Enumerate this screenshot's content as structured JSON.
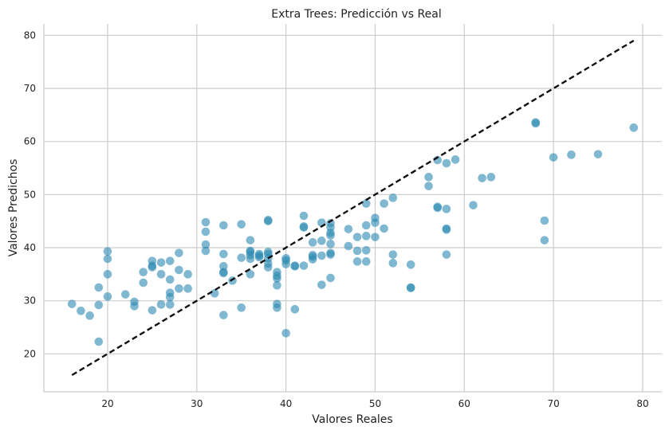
{
  "chart_data": {
    "type": "scatter",
    "title": "Extra Trees: Predicción vs Real",
    "xlabel": "Valores Reales",
    "ylabel": "Valores Predichos",
    "xlim": [
      12.85,
      82.15
    ],
    "ylim": [
      12.85,
      82.15
    ],
    "xticks": [
      20,
      30,
      40,
      50,
      60,
      70,
      80
    ],
    "yticks": [
      20,
      30,
      40,
      50,
      60,
      70,
      80
    ],
    "xtick_labels": [
      "20",
      "30",
      "40",
      "50",
      "60",
      "70",
      "80"
    ],
    "ytick_labels": [
      "20",
      "30",
      "40",
      "50",
      "60",
      "70",
      "80"
    ],
    "grid": true,
    "point_color": "#2a88b0",
    "reference_line": {
      "style": "dashed",
      "color": "#111111",
      "x": [
        16,
        79
      ],
      "y": [
        16,
        79
      ]
    },
    "points": [
      {
        "x": 16,
        "y": 29.4
      },
      {
        "x": 17,
        "y": 28.1
      },
      {
        "x": 18,
        "y": 27.2
      },
      {
        "x": 19,
        "y": 22.3
      },
      {
        "x": 19,
        "y": 29.2
      },
      {
        "x": 19,
        "y": 32.5
      },
      {
        "x": 20,
        "y": 30.8
      },
      {
        "x": 20,
        "y": 35.0
      },
      {
        "x": 20,
        "y": 37.9
      },
      {
        "x": 20,
        "y": 39.3
      },
      {
        "x": 22,
        "y": 31.2
      },
      {
        "x": 23,
        "y": 29.0
      },
      {
        "x": 23,
        "y": 29.8
      },
      {
        "x": 24,
        "y": 33.4
      },
      {
        "x": 24,
        "y": 35.4
      },
      {
        "x": 25,
        "y": 28.2
      },
      {
        "x": 25,
        "y": 36.3
      },
      {
        "x": 25,
        "y": 36.6
      },
      {
        "x": 25,
        "y": 37.5
      },
      {
        "x": 26,
        "y": 29.3
      },
      {
        "x": 26,
        "y": 35.0
      },
      {
        "x": 26,
        "y": 37.2
      },
      {
        "x": 27,
        "y": 29.3
      },
      {
        "x": 27,
        "y": 30.7
      },
      {
        "x": 27,
        "y": 31.5
      },
      {
        "x": 27,
        "y": 34.0
      },
      {
        "x": 27,
        "y": 37.5
      },
      {
        "x": 28,
        "y": 32.3
      },
      {
        "x": 28,
        "y": 35.8
      },
      {
        "x": 28,
        "y": 39.0
      },
      {
        "x": 29,
        "y": 32.3
      },
      {
        "x": 29,
        "y": 35.0
      },
      {
        "x": 31,
        "y": 39.4
      },
      {
        "x": 31,
        "y": 40.6
      },
      {
        "x": 31,
        "y": 43.0
      },
      {
        "x": 31,
        "y": 44.8
      },
      {
        "x": 32,
        "y": 31.4
      },
      {
        "x": 33,
        "y": 27.3
      },
      {
        "x": 33,
        "y": 35.2
      },
      {
        "x": 33,
        "y": 35.4
      },
      {
        "x": 33,
        "y": 36.5
      },
      {
        "x": 33,
        "y": 38.8
      },
      {
        "x": 33,
        "y": 44.2
      },
      {
        "x": 34,
        "y": 33.8
      },
      {
        "x": 35,
        "y": 28.7
      },
      {
        "x": 35,
        "y": 38.1
      },
      {
        "x": 35,
        "y": 44.4
      },
      {
        "x": 36,
        "y": 35.0
      },
      {
        "x": 36,
        "y": 37.9
      },
      {
        "x": 36,
        "y": 38.6
      },
      {
        "x": 36,
        "y": 39.2
      },
      {
        "x": 36,
        "y": 39.4
      },
      {
        "x": 36,
        "y": 41.4
      },
      {
        "x": 37,
        "y": 38.2
      },
      {
        "x": 37,
        "y": 38.5
      },
      {
        "x": 37,
        "y": 38.8
      },
      {
        "x": 38,
        "y": 36.3
      },
      {
        "x": 38,
        "y": 37.0
      },
      {
        "x": 38,
        "y": 38.0
      },
      {
        "x": 38,
        "y": 38.8
      },
      {
        "x": 38,
        "y": 39.2
      },
      {
        "x": 38,
        "y": 45.0
      },
      {
        "x": 38,
        "y": 45.2
      },
      {
        "x": 39,
        "y": 28.7
      },
      {
        "x": 39,
        "y": 29.4
      },
      {
        "x": 39,
        "y": 32.9
      },
      {
        "x": 39,
        "y": 34.2
      },
      {
        "x": 39,
        "y": 34.7
      },
      {
        "x": 39,
        "y": 35.4
      },
      {
        "x": 40,
        "y": 23.9
      },
      {
        "x": 40,
        "y": 36.9
      },
      {
        "x": 40,
        "y": 37.6
      },
      {
        "x": 40,
        "y": 38.0
      },
      {
        "x": 41,
        "y": 28.4
      },
      {
        "x": 41,
        "y": 36.5
      },
      {
        "x": 41,
        "y": 36.6
      },
      {
        "x": 42,
        "y": 36.6
      },
      {
        "x": 42,
        "y": 43.8
      },
      {
        "x": 42,
        "y": 44.0
      },
      {
        "x": 42,
        "y": 46.0
      },
      {
        "x": 43,
        "y": 37.8
      },
      {
        "x": 43,
        "y": 38.3
      },
      {
        "x": 43,
        "y": 38.6
      },
      {
        "x": 43,
        "y": 41.0
      },
      {
        "x": 44,
        "y": 33.0
      },
      {
        "x": 44,
        "y": 38.5
      },
      {
        "x": 44,
        "y": 41.3
      },
      {
        "x": 44,
        "y": 44.7
      },
      {
        "x": 45,
        "y": 34.3
      },
      {
        "x": 45,
        "y": 38.7
      },
      {
        "x": 45,
        "y": 39.0
      },
      {
        "x": 45,
        "y": 40.7
      },
      {
        "x": 45,
        "y": 42.3
      },
      {
        "x": 45,
        "y": 42.8
      },
      {
        "x": 45,
        "y": 43.8
      },
      {
        "x": 45,
        "y": 44.6
      },
      {
        "x": 47,
        "y": 40.3
      },
      {
        "x": 47,
        "y": 43.5
      },
      {
        "x": 48,
        "y": 37.4
      },
      {
        "x": 48,
        "y": 39.4
      },
      {
        "x": 48,
        "y": 42.0
      },
      {
        "x": 49,
        "y": 37.4
      },
      {
        "x": 49,
        "y": 39.5
      },
      {
        "x": 49,
        "y": 42.2
      },
      {
        "x": 49,
        "y": 44.2
      },
      {
        "x": 49,
        "y": 48.3
      },
      {
        "x": 50,
        "y": 42.0
      },
      {
        "x": 50,
        "y": 44.7
      },
      {
        "x": 50,
        "y": 45.6
      },
      {
        "x": 51,
        "y": 43.6
      },
      {
        "x": 51,
        "y": 48.3
      },
      {
        "x": 52,
        "y": 37.1
      },
      {
        "x": 52,
        "y": 38.7
      },
      {
        "x": 52,
        "y": 49.4
      },
      {
        "x": 54,
        "y": 32.4
      },
      {
        "x": 54,
        "y": 32.5
      },
      {
        "x": 54,
        "y": 36.8
      },
      {
        "x": 56,
        "y": 51.6
      },
      {
        "x": 56,
        "y": 53.3
      },
      {
        "x": 57,
        "y": 47.5
      },
      {
        "x": 57,
        "y": 47.7
      },
      {
        "x": 57,
        "y": 56.5
      },
      {
        "x": 58,
        "y": 38.7
      },
      {
        "x": 58,
        "y": 43.4
      },
      {
        "x": 58,
        "y": 43.6
      },
      {
        "x": 58,
        "y": 47.3
      },
      {
        "x": 58,
        "y": 55.9
      },
      {
        "x": 59,
        "y": 56.6
      },
      {
        "x": 61,
        "y": 48.0
      },
      {
        "x": 62,
        "y": 53.1
      },
      {
        "x": 63,
        "y": 53.3
      },
      {
        "x": 68,
        "y": 63.4
      },
      {
        "x": 68,
        "y": 63.6
      },
      {
        "x": 69,
        "y": 41.4
      },
      {
        "x": 69,
        "y": 45.1
      },
      {
        "x": 70,
        "y": 57.0
      },
      {
        "x": 72,
        "y": 57.5
      },
      {
        "x": 75,
        "y": 57.6
      },
      {
        "x": 79,
        "y": 62.6
      }
    ]
  }
}
